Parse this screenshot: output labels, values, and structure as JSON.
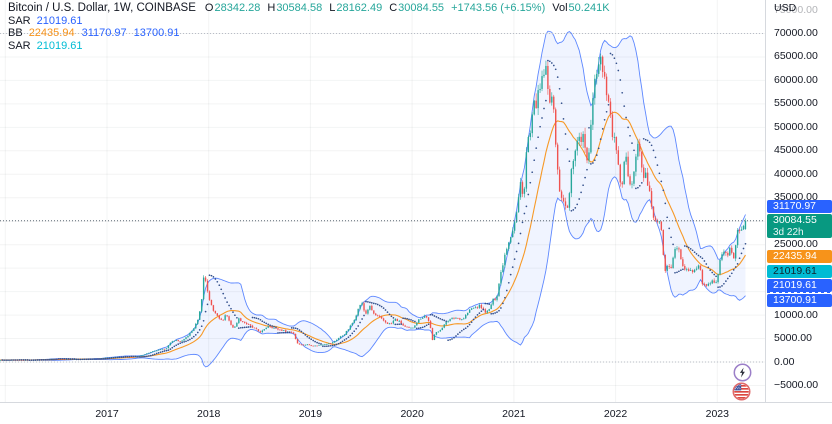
{
  "header": {
    "title": "Bitcoin / U.S. Dollar, 1W, COINBASE",
    "ohlc": [
      {
        "label": "O",
        "value": "28342.28"
      },
      {
        "label": "H",
        "value": "30584.58"
      },
      {
        "label": "L",
        "value": "28162.49"
      },
      {
        "label": "C",
        "value": "30084.55"
      }
    ],
    "change": "+1743.56 (+6.15%)",
    "vol_label": "Vol",
    "vol_value": "50.241K",
    "up_color": "#26A69A"
  },
  "indicators_legend": [
    {
      "name": "SAR",
      "values": [
        {
          "text": "21019.61",
          "color": "#2962FF"
        }
      ]
    },
    {
      "name": "BB",
      "values": [
        {
          "text": "22435.94",
          "color": "#F7931A"
        },
        {
          "text": "31170.97",
          "color": "#2962FF"
        },
        {
          "text": "13700.91",
          "color": "#2962FF"
        }
      ]
    },
    {
      "name": "SAR",
      "values": [
        {
          "text": "21019.61",
          "color": "#00BCD4"
        }
      ]
    }
  ],
  "price_axis": {
    "currency": "USD",
    "ticks": [
      {
        "label": "75000.00",
        "price": 75000,
        "faded": true
      },
      {
        "label": "70000.00",
        "price": 70000
      },
      {
        "label": "65000.00",
        "price": 65000
      },
      {
        "label": "60000.00",
        "price": 60000
      },
      {
        "label": "55000.00",
        "price": 55000
      },
      {
        "label": "50000.00",
        "price": 50000
      },
      {
        "label": "45000.00",
        "price": 45000
      },
      {
        "label": "40000.00",
        "price": 40000
      },
      {
        "label": "35000.00",
        "price": 35000
      },
      {
        "label": "25000.00",
        "price": 25000
      },
      {
        "label": "10000.00",
        "price": 10000
      },
      {
        "label": "5000.00",
        "price": 5000
      },
      {
        "label": "0.00",
        "price": 0
      },
      {
        "label": "−5000.00",
        "price": -5000
      }
    ],
    "badges": [
      {
        "text": "31170.97",
        "price": 31170.97,
        "bg": "#2962FF",
        "fg": "#FFFFFF"
      },
      {
        "text": "30084.55",
        "sub": "3d 22h",
        "price": 30084.55,
        "bg": "#089981",
        "fg": "#FFFFFF",
        "primary": true
      },
      {
        "text": "22435.94",
        "price": 22435.94,
        "bg": "#F7931A",
        "fg": "#FFFFFF"
      },
      {
        "text": "21019.61",
        "price": 21019.61,
        "bg": "#00BCD4",
        "fg": "#10222B"
      },
      {
        "text": "21019.61",
        "price": 21019.61,
        "bg": "#2962FF",
        "fg": "#FFFFFF"
      },
      {
        "text": "13700.91",
        "price": 13700.91,
        "bg": "#2962FF",
        "fg": "#FFFFFF",
        "striped_top": true
      }
    ]
  },
  "time_axis": {
    "years": [
      {
        "label": "2017",
        "year": 2017
      },
      {
        "label": "2018",
        "year": 2018
      },
      {
        "label": "2019",
        "year": 2019
      },
      {
        "label": "2020",
        "year": 2020
      },
      {
        "label": "2021",
        "year": 2021
      },
      {
        "label": "2022",
        "year": 2022
      },
      {
        "label": "2023",
        "year": 2023
      }
    ]
  },
  "chart_data": {
    "type": "candlestick",
    "title": "Bitcoin / U.S. Dollar, 1W, COINBASE",
    "symbol": "BTCUSD",
    "timeframe": "1W",
    "x_unit": "decimal_year",
    "x_range": [
      2015.95,
      2023.285
    ],
    "y_range": [
      -5000,
      75000
    ],
    "grid_step_y": 5000,
    "last": {
      "open": 28342.28,
      "high": 30584.58,
      "low": 28162.49,
      "close": 30084.55
    },
    "h_lines": [
      {
        "price": 70000,
        "color": "#B8BCC6"
      },
      {
        "price": 30084.55,
        "color": "#5A6672"
      },
      {
        "price": 0,
        "color": "#B8BCC6"
      }
    ],
    "colors": {
      "up": "#26A69A",
      "down": "#EF5350"
    },
    "indicators": {
      "bollinger": {
        "period": 20,
        "mult": 2,
        "line_color": "#2962FF",
        "basis_color": "#F7931A",
        "fill": "rgba(41,98,255,0.07)",
        "upper": 31170.97,
        "basis": 22435.94,
        "lower": 13700.91
      },
      "sar": {
        "color": "#33508C",
        "value": 21019.61
      }
    },
    "anchors": [
      [
        2015.95,
        420
      ],
      [
        2016.0,
        432
      ],
      [
        2016.08,
        437
      ],
      [
        2016.17,
        416
      ],
      [
        2016.25,
        448
      ],
      [
        2016.33,
        530
      ],
      [
        2016.42,
        585
      ],
      [
        2016.46,
        670
      ],
      [
        2016.5,
        660
      ],
      [
        2016.58,
        575
      ],
      [
        2016.67,
        608
      ],
      [
        2016.75,
        640
      ],
      [
        2016.83,
        700
      ],
      [
        2016.92,
        745
      ],
      [
        2017.0,
        965
      ],
      [
        2017.08,
        1065
      ],
      [
        2017.17,
        1180
      ],
      [
        2017.25,
        1080
      ],
      [
        2017.33,
        1350
      ],
      [
        2017.42,
        2050
      ],
      [
        2017.5,
        2550
      ],
      [
        2017.58,
        2870
      ],
      [
        2017.63,
        4200
      ],
      [
        2017.67,
        4730
      ],
      [
        2017.71,
        4360
      ],
      [
        2017.75,
        4600
      ],
      [
        2017.83,
        6450
      ],
      [
        2017.88,
        8200
      ],
      [
        2017.92,
        11300
      ],
      [
        2017.955,
        19000
      ],
      [
        2018.0,
        13900
      ],
      [
        2018.04,
        11000
      ],
      [
        2018.08,
        10200
      ],
      [
        2018.13,
        8600
      ],
      [
        2018.17,
        10300
      ],
      [
        2018.21,
        8300
      ],
      [
        2018.25,
        7000
      ],
      [
        2018.29,
        9250
      ],
      [
        2018.33,
        8700
      ],
      [
        2018.42,
        7500
      ],
      [
        2018.5,
        6400
      ],
      [
        2018.54,
        6700
      ],
      [
        2018.58,
        7750
      ],
      [
        2018.67,
        7020
      ],
      [
        2018.75,
        6600
      ],
      [
        2018.83,
        6300
      ],
      [
        2018.87,
        4020
      ],
      [
        2018.92,
        3600
      ],
      [
        2018.96,
        3740
      ],
      [
        2019.04,
        3440
      ],
      [
        2019.13,
        3820
      ],
      [
        2019.21,
        4000
      ],
      [
        2019.29,
        5320
      ],
      [
        2019.33,
        5800
      ],
      [
        2019.38,
        7200
      ],
      [
        2019.42,
        8560
      ],
      [
        2019.46,
        10700
      ],
      [
        2019.5,
        12900
      ],
      [
        2019.54,
        10080
      ],
      [
        2019.58,
        11900
      ],
      [
        2019.63,
        10000
      ],
      [
        2019.67,
        9600
      ],
      [
        2019.75,
        8300
      ],
      [
        2019.79,
        8050
      ],
      [
        2019.83,
        9150
      ],
      [
        2019.88,
        8500
      ],
      [
        2019.92,
        7560
      ],
      [
        2019.96,
        7190
      ],
      [
        2020.0,
        7200
      ],
      [
        2020.04,
        8350
      ],
      [
        2020.08,
        9350
      ],
      [
        2020.13,
        9900
      ],
      [
        2020.17,
        8550
      ],
      [
        2020.2,
        4600
      ],
      [
        2020.23,
        6440
      ],
      [
        2020.29,
        6900
      ],
      [
        2020.33,
        8630
      ],
      [
        2020.42,
        9450
      ],
      [
        2020.5,
        9140
      ],
      [
        2020.54,
        10350
      ],
      [
        2020.58,
        11350
      ],
      [
        2020.63,
        11650
      ],
      [
        2020.67,
        11950
      ],
      [
        2020.71,
        10780
      ],
      [
        2020.75,
        10700
      ],
      [
        2020.79,
        13050
      ],
      [
        2020.83,
        13800
      ],
      [
        2020.87,
        18800
      ],
      [
        2020.92,
        23800
      ],
      [
        2020.96,
        26500
      ],
      [
        2021.0,
        29000
      ],
      [
        2021.04,
        33100
      ],
      [
        2021.06,
        38500
      ],
      [
        2021.1,
        35500
      ],
      [
        2021.13,
        47000
      ],
      [
        2021.17,
        48900
      ],
      [
        2021.19,
        54000
      ],
      [
        2021.23,
        55900
      ],
      [
        2021.27,
        58900
      ],
      [
        2021.31,
        63200
      ],
      [
        2021.33,
        58000
      ],
      [
        2021.35,
        56200
      ],
      [
        2021.38,
        58200
      ],
      [
        2021.4,
        49000
      ],
      [
        2021.42,
        46000
      ],
      [
        2021.44,
        37300
      ],
      [
        2021.46,
        34500
      ],
      [
        2021.48,
        35600
      ],
      [
        2021.5,
        33500
      ],
      [
        2021.52,
        31800
      ],
      [
        2021.54,
        34200
      ],
      [
        2021.56,
        39800
      ],
      [
        2021.58,
        42800
      ],
      [
        2021.6,
        45600
      ],
      [
        2021.63,
        47100
      ],
      [
        2021.65,
        48800
      ],
      [
        2021.67,
        47000
      ],
      [
        2021.69,
        48300
      ],
      [
        2021.71,
        43800
      ],
      [
        2021.73,
        41000
      ],
      [
        2021.75,
        47700
      ],
      [
        2021.77,
        54700
      ],
      [
        2021.79,
        61300
      ],
      [
        2021.81,
        60800
      ],
      [
        2021.83,
        64300
      ],
      [
        2021.85,
        65500
      ],
      [
        2021.87,
        63200
      ],
      [
        2021.9,
        59700
      ],
      [
        2021.92,
        57000
      ],
      [
        2021.94,
        54000
      ],
      [
        2021.96,
        50500
      ],
      [
        2021.98,
        46200
      ],
      [
        2022.0,
        47700
      ],
      [
        2022.02,
        43100
      ],
      [
        2022.04,
        38500
      ],
      [
        2022.06,
        35030
      ],
      [
        2022.08,
        42400
      ],
      [
        2022.1,
        43190
      ],
      [
        2022.13,
        39400
      ],
      [
        2022.15,
        38400
      ],
      [
        2022.17,
        39300
      ],
      [
        2022.19,
        42200
      ],
      [
        2022.21,
        45540
      ],
      [
        2022.23,
        46300
      ],
      [
        2022.25,
        42300
      ],
      [
        2022.27,
        39700
      ],
      [
        2022.29,
        40600
      ],
      [
        2022.31,
        37650
      ],
      [
        2022.33,
        36000
      ],
      [
        2022.35,
        34060
      ],
      [
        2022.38,
        30080
      ],
      [
        2022.4,
        29450
      ],
      [
        2022.42,
        29850
      ],
      [
        2022.44,
        29000
      ],
      [
        2022.46,
        26700
      ],
      [
        2022.48,
        19000
      ],
      [
        2022.5,
        20570
      ],
      [
        2022.52,
        21500
      ],
      [
        2022.54,
        19250
      ],
      [
        2022.56,
        22450
      ],
      [
        2022.58,
        23300
      ],
      [
        2022.6,
        24400
      ],
      [
        2022.63,
        23290
      ],
      [
        2022.65,
        21300
      ],
      [
        2022.67,
        20050
      ],
      [
        2022.69,
        19820
      ],
      [
        2022.71,
        20130
      ],
      [
        2022.73,
        18900
      ],
      [
        2022.75,
        19430
      ],
      [
        2022.77,
        19570
      ],
      [
        2022.79,
        19420
      ],
      [
        2022.81,
        20490
      ],
      [
        2022.83,
        20600
      ],
      [
        2022.85,
        16340
      ],
      [
        2022.87,
        16250
      ],
      [
        2022.9,
        16530
      ],
      [
        2022.92,
        16460
      ],
      [
        2022.94,
        17100
      ],
      [
        2022.96,
        16840
      ],
      [
        2022.98,
        16550
      ],
      [
        2023.0,
        16700
      ],
      [
        2023.02,
        21100
      ],
      [
        2023.04,
        22780
      ],
      [
        2023.06,
        22950
      ],
      [
        2023.08,
        23130
      ],
      [
        2023.1,
        21860
      ],
      [
        2023.13,
        24450
      ],
      [
        2023.15,
        22350
      ],
      [
        2023.17,
        22430
      ],
      [
        2023.19,
        27470
      ],
      [
        2023.21,
        28470
      ],
      [
        2023.23,
        27950
      ],
      [
        2023.25,
        28300
      ],
      [
        2023.27,
        29450
      ],
      [
        2023.285,
        30084.55
      ]
    ]
  },
  "floating_icons": [
    {
      "name": "lightning-icon"
    },
    {
      "name": "us-flag-icon"
    }
  ]
}
